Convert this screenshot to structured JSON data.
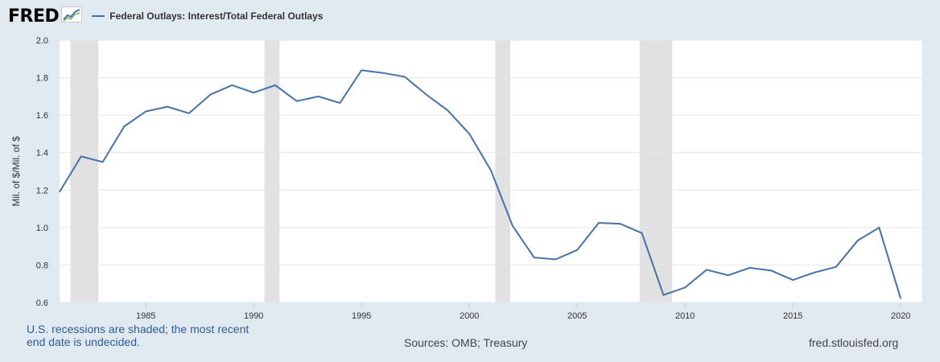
{
  "header": {
    "logo_text": "FRED",
    "legend_label": "Federal Outlays: Interest/Total Federal Outlays"
  },
  "footer": {
    "recession_note": "U.S. recessions are shaded; the most recent end date is undecided.",
    "sources": "Sources: OMB; Treasury",
    "site": "fred.stlouisfed.org"
  },
  "colors": {
    "line": "#4572a7",
    "recession": "#e1e1e1",
    "background": "#e1e9f0",
    "plot": "#ffffff",
    "grid": "#e6e6e6"
  },
  "chart_data": {
    "type": "line",
    "title": "",
    "xlabel": "",
    "ylabel": "Mil. of $/Mil. of $",
    "xlim": [
      1981,
      2021
    ],
    "ylim": [
      0.6,
      2.0
    ],
    "yticks": [
      "0.6",
      "0.8",
      "1.0",
      "1.2",
      "1.4",
      "1.6",
      "1.8",
      "2.0"
    ],
    "xticks": [
      "1985",
      "1990",
      "1995",
      "2000",
      "2005",
      "2010",
      "2015",
      "2020"
    ],
    "grid": true,
    "legend": "top-left",
    "recessions": [
      [
        1981.5,
        1982.8
      ],
      [
        1990.5,
        1991.2
      ],
      [
        2001.2,
        2001.9
      ],
      [
        2007.9,
        2009.4
      ]
    ],
    "series": [
      {
        "name": "Federal Outlays: Interest/Total Federal Outlays",
        "x": [
          1981,
          1982,
          1983,
          1984,
          1985,
          1986,
          1987,
          1988,
          1989,
          1990,
          1991,
          1992,
          1993,
          1994,
          1995,
          1996,
          1997,
          1998,
          1999,
          2000,
          2001,
          2002,
          2003,
          2004,
          2005,
          2006,
          2007,
          2008,
          2009,
          2010,
          2011,
          2012,
          2013,
          2014,
          2015,
          2016,
          2017,
          2018,
          2019,
          2020
        ],
        "values": [
          1.19,
          1.38,
          1.35,
          1.54,
          1.62,
          1.645,
          1.61,
          1.71,
          1.76,
          1.72,
          1.76,
          1.675,
          1.7,
          1.665,
          1.84,
          1.825,
          1.805,
          1.71,
          1.625,
          1.5,
          1.305,
          1.01,
          0.84,
          0.83,
          0.88,
          1.025,
          1.02,
          0.97,
          0.64,
          0.68,
          0.775,
          0.745,
          0.785,
          0.77,
          0.72,
          0.76,
          0.79,
          0.93,
          1.0,
          0.62
        ]
      }
    ]
  }
}
